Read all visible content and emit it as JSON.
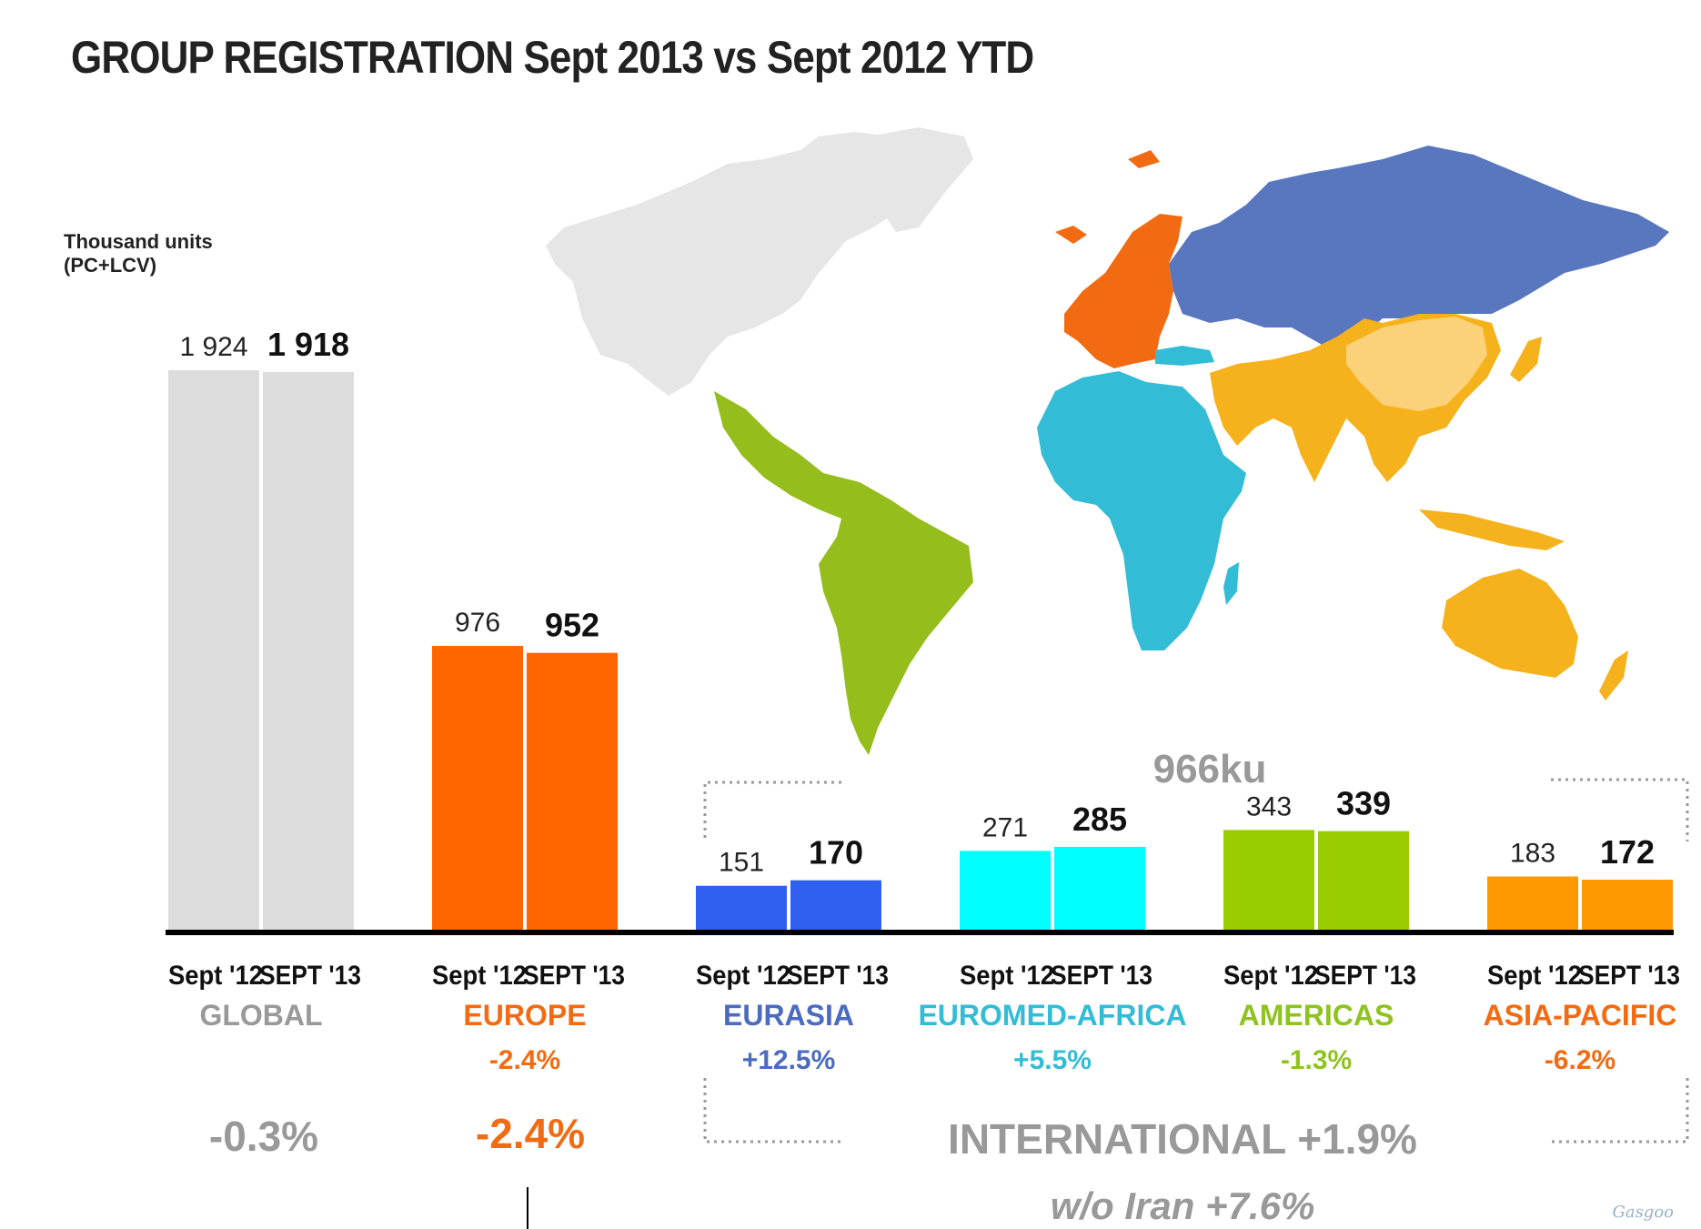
{
  "title": "GROUP REGISTRATION Sept 2013 vs Sept 2012 YTD",
  "unit_label": "Thousand units\n(PC+LCV)",
  "watermark": "Gasgoo",
  "colors": {
    "map_other": "#e6e6e6",
    "europe": "#f26b13",
    "eurasia": "#5877bf",
    "euromed_africa": "#33bcd6",
    "americas": "#95bd1c",
    "asia_pacific": "#f5b21c"
  },
  "chart_data": {
    "type": "bar",
    "series": [
      {
        "name": "Sept '12",
        "values": [
          1924,
          976,
          151,
          271,
          343,
          183
        ]
      },
      {
        "name": "SEPT '13",
        "values": [
          1918,
          952,
          170,
          285,
          339,
          172
        ]
      }
    ],
    "categories": [
      "GLOBAL",
      "EUROPE",
      "EURASIA",
      "EUROMED-AFRICA",
      "AMERICAS",
      "ASIA-PACIFIC"
    ],
    "value_labels_2012": [
      "1 924",
      "976",
      "151",
      "271",
      "343",
      "183"
    ],
    "value_labels_2013": [
      "1 918",
      "952",
      "170",
      "285",
      "339",
      "172"
    ],
    "period_labels": [
      "Sept '12",
      "SEPT '13"
    ],
    "changes": [
      "",
      "-2.4%",
      "+12.5%",
      "+5.5%",
      "-1.3%",
      "-6.2%"
    ],
    "bar_colors_2012": [
      "#dcdcdc",
      "#ff6600",
      "#3060f0",
      "#00ffff",
      "#99cc00",
      "#ff9900"
    ],
    "bar_colors_2013": [
      "#dcdcdc",
      "#ff6600",
      "#3060f0",
      "#00ffff",
      "#99cc00",
      "#ff9900"
    ],
    "label_colors": [
      "#999999",
      "#f26b13",
      "#4a6bbf",
      "#33bcd6",
      "#8fc31f",
      "#f26b13"
    ],
    "ylim": [
      0,
      2000
    ],
    "summary": {
      "global_change": "-0.3%",
      "europe_change": "-2.4%",
      "international": "INTERNATIONAL +1.9%",
      "international_volume": "966ku",
      "without_iran": "w/o Iran +7.6%"
    }
  }
}
